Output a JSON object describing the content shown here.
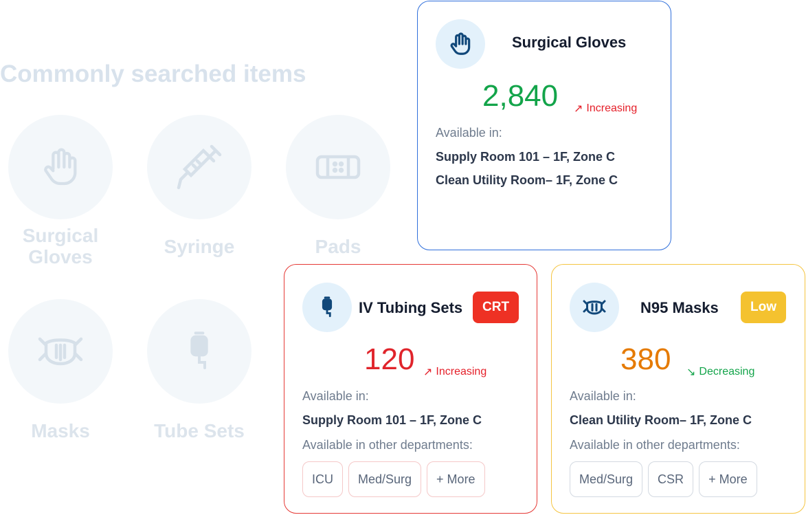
{
  "section_title": "Commonly searched items",
  "categories": [
    {
      "label": "Surgical Gloves",
      "icon": "hand-icon"
    },
    {
      "label": "Syringe",
      "icon": "syringe-icon"
    },
    {
      "label": "Pads",
      "icon": "bandage-icon"
    },
    {
      "label": "Masks",
      "icon": "mask-icon"
    },
    {
      "label": "Tube Sets",
      "icon": "iv-bag-icon"
    }
  ],
  "cards": [
    {
      "name": "Surgical Gloves",
      "icon": "hand-icon",
      "quantity": "2,840",
      "quantity_color": "#13a44a",
      "trend": "Increasing",
      "trend_color": "#e5202a",
      "available_label": "Available in:",
      "locations": [
        "Supply Room 101 – 1F, Zone C",
        "Clean Utility Room– 1F, Zone C"
      ],
      "border_color": "#2f6fdb"
    },
    {
      "name": "IV Tubing Sets",
      "icon": "iv-bag-icon",
      "badge": "CRT",
      "badge_color": "#ee3124",
      "quantity": "120",
      "quantity_color": "#e0242b",
      "trend": "Increasing",
      "trend_color": "#e5202a",
      "available_label": "Available in:",
      "locations": [
        "Supply Room 101 – 1F, Zone C"
      ],
      "other_label": "Available in other departments:",
      "departments": [
        "ICU",
        "Med/Surg",
        "+ More"
      ],
      "border_color": "#e53935"
    },
    {
      "name": "N95 Masks",
      "icon": "mask-icon",
      "badge": "Low",
      "badge_color": "#f4c22f",
      "quantity": "380",
      "quantity_color": "#e57a00",
      "trend": "Decreasing",
      "trend_color": "#13a44a",
      "available_label": "Available in:",
      "locations": [
        "Clean Utility Room– 1F, Zone C"
      ],
      "other_label": "Available in other departments:",
      "departments": [
        "Med/Surg",
        "CSR",
        "+ More"
      ],
      "border_color": "#f5c542"
    }
  ]
}
